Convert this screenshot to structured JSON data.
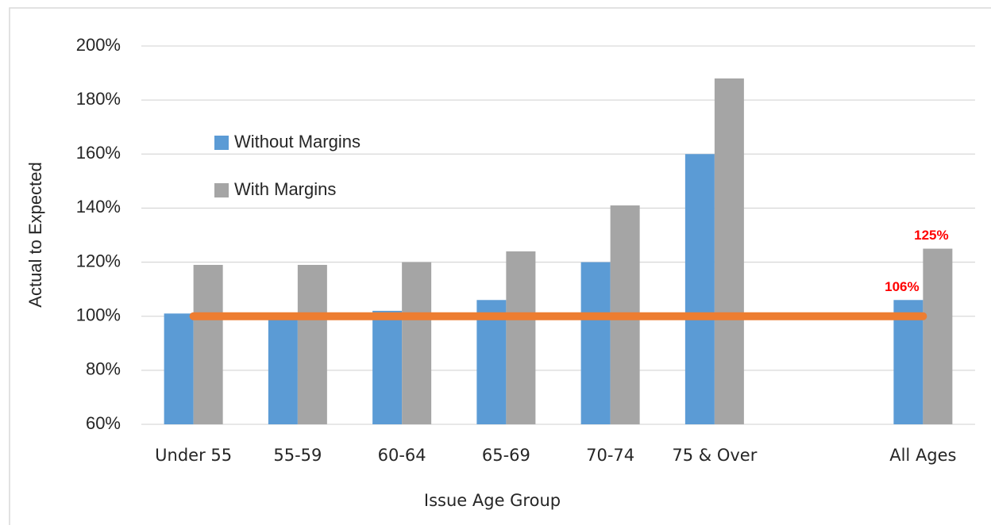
{
  "chart_data": {
    "type": "bar",
    "y_label": "Actual to Expected",
    "x_label": "Issue Age Group",
    "categories": [
      "Under 55",
      "55-59",
      "60-64",
      "65-69",
      "70-74",
      "75 & Over",
      null,
      "All Ages"
    ],
    "series": [
      {
        "name": "Without Margins",
        "color": "#5B9BD5",
        "values": [
          101,
          99,
          102,
          106,
          120,
          160,
          null,
          106
        ],
        "value_labels": [
          null,
          null,
          null,
          null,
          null,
          null,
          null,
          "106%"
        ]
      },
      {
        "name": "With Margins",
        "color": "#A5A5A5",
        "values": [
          119,
          119,
          120,
          124,
          141,
          188,
          null,
          125
        ],
        "value_labels": [
          null,
          null,
          null,
          null,
          null,
          null,
          null,
          "125%"
        ]
      }
    ],
    "reference_line": {
      "value": 100,
      "color": "#ED7D31"
    },
    "value_label_color": "#FF0000",
    "ylim": [
      60,
      200
    ],
    "yticks": [
      {
        "value": 60,
        "label": "60%"
      },
      {
        "value": 80,
        "label": "80%"
      },
      {
        "value": 100,
        "label": "100%"
      },
      {
        "value": 120,
        "label": "120%"
      },
      {
        "value": 140,
        "label": "140%"
      },
      {
        "value": 160,
        "label": "160%"
      },
      {
        "value": 180,
        "label": "180%"
      },
      {
        "value": 200,
        "label": "200%"
      }
    ],
    "grid": true
  }
}
